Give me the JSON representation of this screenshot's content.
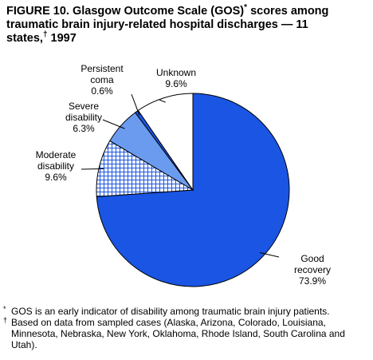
{
  "title": {
    "line1": "FIGURE 10. Glasgow Outcome Scale (GOS)",
    "mark1": "*",
    "line1b": " scores among",
    "line2": "traumatic brain injury-related hospital discharges — 11",
    "line3a": "states,",
    "mark2": "†",
    "line3b": " 1997"
  },
  "chart_data": {
    "type": "pie",
    "title": "FIGURE 10. Glasgow Outcome Scale (GOS)* scores among traumatic brain injury-related hospital discharges — 11 states,† 1997",
    "slices": [
      {
        "label_lines": [
          "Good",
          "recovery",
          "73.9%"
        ],
        "value": 73.9,
        "color": "#1a55e3",
        "fill": "solid"
      },
      {
        "label_lines": [
          "Moderate",
          "disability",
          "9.6%"
        ],
        "value": 9.6,
        "color": "#1a55e3",
        "fill": "grid"
      },
      {
        "label_lines": [
          "Severe",
          "disability",
          "6.3%"
        ],
        "value": 6.3,
        "color": "#6b9bef",
        "fill": "solid"
      },
      {
        "label_lines": [
          "Persistent",
          "coma",
          "0.6%"
        ],
        "value": 0.6,
        "color": "#1a55e3",
        "fill": "solid"
      },
      {
        "label_lines": [
          "Unknown",
          "9.6%"
        ],
        "value": 9.6,
        "color": "#ffffff",
        "fill": "solid"
      }
    ],
    "start": "12 o'clock",
    "direction": "clockwise",
    "legend": "none"
  },
  "footnotes": [
    {
      "mark": "*",
      "text": "GOS is an early indicator of disability among traumatic brain injury patients."
    },
    {
      "mark": "†",
      "text": "Based on data from sampled cases (Alaska, Arizona, Colorado, Louisiana, Minnesota, Nebraska, New York, Oklahoma, Rhode Island, South Carolina and Utah)."
    }
  ]
}
